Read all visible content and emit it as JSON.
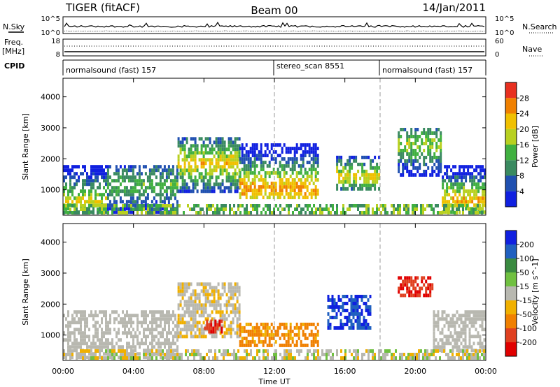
{
  "header": {
    "radar": "TIGER (fitACF)",
    "beam": "Beam 00",
    "date": "14/Jan/2011"
  },
  "status_panel": {
    "nsky_label": "N.Sky",
    "nsky_ticks": [
      "10^5",
      "10^0"
    ],
    "nsearch_label": "N.Search",
    "nsearch_ticks": [
      "10^5",
      "10^0"
    ],
    "freq_label": "Freq.",
    "freq_unit": "[MHz]",
    "freq_ticks": [
      "18",
      "8"
    ],
    "nave_label": "Nave",
    "nave_ticks": [
      "60",
      "0"
    ],
    "cpid_label": "CPID",
    "cpid_segments": [
      {
        "label": "normalsound (fast) 157",
        "start_hour": 0,
        "end_hour": 12
      },
      {
        "label": "stereo_scan 8551",
        "start_hour": 12,
        "end_hour": 18
      },
      {
        "label": "normalsound (fast) 157",
        "start_hour": 18,
        "end_hour": 24
      }
    ]
  },
  "chart_data": [
    {
      "type": "heatmap",
      "quantity": "Power",
      "ylabel": "Slant Range [km]",
      "y_ticks": [
        1000,
        2000,
        3000,
        4000
      ],
      "ylim": [
        180,
        4600
      ],
      "xlim": [
        0,
        24
      ],
      "colorbar_label": "Power [dB]",
      "colorbar_ticks": [
        4,
        8,
        12,
        16,
        20,
        24,
        28
      ],
      "colorbar_range": [
        0,
        32
      ],
      "colors": [
        "#1020e0",
        "#2050b0",
        "#3a8a60",
        "#40b040",
        "#b8d020",
        "#f0c000",
        "#f08000",
        "#e83020"
      ],
      "echo_regions": [
        {
          "start_hour": 0.0,
          "end_hour": 2.5,
          "range_min": 300,
          "range_max": 1800,
          "peak_range": 700,
          "power": 20
        },
        {
          "start_hour": 2.5,
          "end_hour": 6.5,
          "range_min": 300,
          "range_max": 1800,
          "peak_range": 1200,
          "power": 14
        },
        {
          "start_hour": 6.5,
          "end_hour": 10.0,
          "range_min": 1000,
          "range_max": 2700,
          "peak_range": 1900,
          "power": 22
        },
        {
          "start_hour": 10.0,
          "end_hour": 14.5,
          "range_min": 700,
          "range_max": 2500,
          "peak_range": 1100,
          "power": 26
        },
        {
          "start_hour": 15.5,
          "end_hour": 18.0,
          "range_min": 1000,
          "range_max": 2100,
          "peak_range": 1500,
          "power": 22
        },
        {
          "start_hour": 19.0,
          "end_hour": 21.5,
          "range_min": 1500,
          "range_max": 3000,
          "peak_range": 2500,
          "power": 18
        },
        {
          "start_hour": 21.5,
          "end_hour": 24.0,
          "range_min": 300,
          "range_max": 1800,
          "peak_range": 700,
          "power": 24
        }
      ]
    },
    {
      "type": "heatmap",
      "quantity": "Velocity",
      "ylabel": "Slant Range [km]",
      "y_ticks": [
        1000,
        2000,
        3000,
        4000
      ],
      "ylim": [
        180,
        4600
      ],
      "xlabel": "Time UT",
      "x_ticks": [
        "00:00",
        "04:00",
        "08:00",
        "12:00",
        "16:00",
        "20:00",
        "00:00"
      ],
      "xlim": [
        0,
        24
      ],
      "colorbar_label": "Velocity [m s^-1]",
      "colorbar_ticks": [
        200,
        100,
        50,
        15,
        -15,
        -50,
        -100,
        -200
      ],
      "colors": [
        "#1020e0",
        "#2060c0",
        "#3a8a40",
        "#70c040",
        "#b8b8b0",
        "#f0b000",
        "#f08000",
        "#e04020",
        "#e00000"
      ],
      "echo_regions": [
        {
          "start_hour": 0.0,
          "end_hour": 6.5,
          "range_min": 300,
          "range_max": 1800,
          "velocity": 0
        },
        {
          "start_hour": 6.5,
          "end_hour": 10.0,
          "range_min": 1000,
          "range_max": 2700,
          "velocity": -10
        },
        {
          "start_hour": 8.0,
          "end_hour": 9.0,
          "range_min": 1100,
          "range_max": 1500,
          "velocity": -200
        },
        {
          "start_hour": 10.0,
          "end_hour": 14.5,
          "range_min": 700,
          "range_max": 1400,
          "velocity": -60
        },
        {
          "start_hour": 15.0,
          "end_hour": 17.5,
          "range_min": 1200,
          "range_max": 2300,
          "velocity": 200
        },
        {
          "start_hour": 19.0,
          "end_hour": 21.0,
          "range_min": 2300,
          "range_max": 2900,
          "velocity": -200
        },
        {
          "start_hour": 21.0,
          "end_hour": 24.0,
          "range_min": 500,
          "range_max": 1800,
          "velocity": 0
        }
      ]
    }
  ]
}
